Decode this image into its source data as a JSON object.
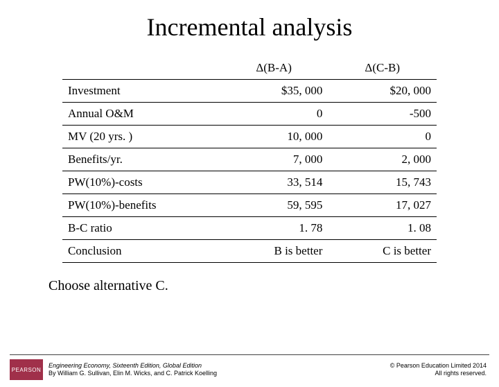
{
  "title": "Incremental analysis",
  "table": {
    "headers": {
      "c1": "Δ(B-A)",
      "c2": "Δ(C-B)"
    },
    "rows": [
      {
        "label": "Investment",
        "c1": "$35, 000",
        "c2": "$20, 000"
      },
      {
        "label": "Annual O&M",
        "c1": "0",
        "c2": "-500"
      },
      {
        "label": "MV (20 yrs. )",
        "c1": "10, 000",
        "c2": "0"
      },
      {
        "label": "Benefits/yr.",
        "c1": "7, 000",
        "c2": "2, 000"
      },
      {
        "label": "PW(10%)-costs",
        "c1": "33, 514",
        "c2": "15, 743"
      },
      {
        "label": "PW(10%)-benefits",
        "c1": "59, 595",
        "c2": "17, 027"
      },
      {
        "label": "B-C ratio",
        "c1": "1. 78",
        "c2": "1. 08"
      },
      {
        "label": "Conclusion",
        "c1": "B is better",
        "c2": "C is better"
      }
    ]
  },
  "conclusion": "Choose alternative C.",
  "footer": {
    "logo_text": "PEARSON",
    "book_title": "Engineering Economy, Sixteenth Edition, Global Edition",
    "authors": "By William G. Sullivan, Elin M. Wicks, and C. Patrick Koelling",
    "copyright_l1": "© Pearson Education Limited 2014",
    "copyright_l2": "All rights reserved."
  },
  "style": {
    "background": "#ffffff",
    "text_color": "#000000",
    "logo_bg": "#a0304a"
  }
}
